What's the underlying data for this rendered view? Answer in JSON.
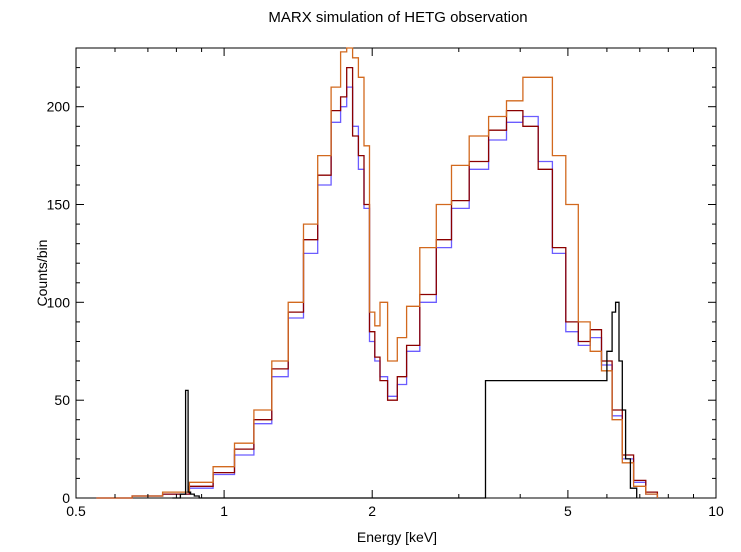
{
  "chart_data": {
    "type": "line",
    "style": "histogram-step",
    "title": "MARX simulation of HETG observation",
    "xlabel": "Energy [keV]",
    "ylabel": "Counts/bin",
    "xscale": "log",
    "xlim": [
      0.5,
      10
    ],
    "ylim": [
      0,
      230
    ],
    "xticks": [
      {
        "value": 0.5,
        "label": "0.5"
      },
      {
        "value": 1,
        "label": "1"
      },
      {
        "value": 2,
        "label": "2"
      },
      {
        "value": 5,
        "label": "5"
      },
      {
        "value": 10,
        "label": "10"
      }
    ],
    "yticks": [
      {
        "value": 0,
        "label": "0"
      },
      {
        "value": 50,
        "label": "50"
      },
      {
        "value": 100,
        "label": "100"
      },
      {
        "value": 150,
        "label": "150"
      },
      {
        "value": 200,
        "label": "200"
      }
    ],
    "grid": false,
    "legend": "none",
    "series": [
      {
        "color": "#6b5cff",
        "x": [
          0.6,
          0.7,
          0.8,
          0.9,
          1.0,
          1.1,
          1.2,
          1.3,
          1.4,
          1.5,
          1.6,
          1.7,
          1.75,
          1.8,
          1.85,
          1.9,
          1.95,
          2.0,
          2.05,
          2.1,
          2.2,
          2.3,
          2.4,
          2.6,
          2.8,
          3.0,
          3.3,
          3.6,
          3.9,
          4.2,
          4.5,
          4.8,
          5.1,
          5.4,
          5.7,
          6.0,
          6.3,
          6.6,
          7.0,
          7.4
        ],
        "y": [
          0,
          1,
          2,
          5,
          12,
          22,
          38,
          62,
          92,
          125,
          160,
          192,
          200,
          210,
          190,
          168,
          148,
          80,
          70,
          62,
          52,
          58,
          75,
          100,
          128,
          148,
          168,
          183,
          192,
          195,
          172,
          125,
          85,
          78,
          82,
          68,
          42,
          20,
          8,
          2
        ]
      },
      {
        "color": "#8b0000",
        "x": [
          0.6,
          0.7,
          0.8,
          0.9,
          1.0,
          1.1,
          1.2,
          1.3,
          1.4,
          1.5,
          1.6,
          1.7,
          1.75,
          1.8,
          1.85,
          1.9,
          1.95,
          2.0,
          2.05,
          2.1,
          2.2,
          2.3,
          2.4,
          2.6,
          2.8,
          3.0,
          3.3,
          3.6,
          3.9,
          4.2,
          4.5,
          4.8,
          5.1,
          5.4,
          5.7,
          6.0,
          6.3,
          6.6,
          7.0,
          7.4
        ],
        "y": [
          0,
          1,
          2,
          6,
          13,
          25,
          40,
          66,
          95,
          132,
          165,
          198,
          205,
          220,
          185,
          175,
          150,
          85,
          72,
          60,
          50,
          62,
          78,
          104,
          132,
          152,
          172,
          188,
          198,
          190,
          168,
          128,
          90,
          80,
          86,
          70,
          45,
          22,
          9,
          3
        ]
      },
      {
        "color": "#d2691e",
        "x": [
          0.6,
          0.7,
          0.8,
          0.9,
          1.0,
          1.1,
          1.2,
          1.3,
          1.4,
          1.5,
          1.6,
          1.7,
          1.75,
          1.8,
          1.85,
          1.9,
          1.95,
          2.0,
          2.05,
          2.1,
          2.2,
          2.3,
          2.4,
          2.6,
          2.8,
          3.0,
          3.3,
          3.6,
          3.9,
          4.2,
          4.5,
          4.8,
          5.1,
          5.4,
          5.7,
          6.0,
          6.3,
          6.6,
          7.0,
          7.4
        ],
        "y": [
          0,
          1,
          3,
          8,
          16,
          28,
          45,
          70,
          100,
          140,
          175,
          210,
          228,
          230,
          225,
          215,
          180,
          95,
          88,
          100,
          70,
          82,
          98,
          128,
          150,
          170,
          185,
          195,
          203,
          215,
          215,
          175,
          150,
          90,
          75,
          65,
          40,
          18,
          6,
          2
        ]
      },
      {
        "color": "#000000",
        "x": [
          0.8,
          0.83,
          0.84,
          0.85,
          0.86,
          0.88,
          0.9,
          5.9,
          6.1,
          6.2,
          6.3,
          6.4,
          6.5,
          6.6,
          6.8
        ],
        "y": [
          0,
          2,
          55,
          3,
          2,
          1,
          0,
          60,
          75,
          95,
          100,
          70,
          45,
          20,
          5
        ]
      }
    ]
  }
}
